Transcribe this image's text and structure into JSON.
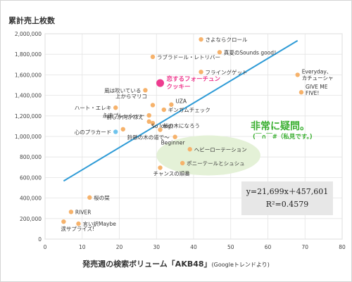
{
  "chart_data": {
    "type": "scatter",
    "ylabel": "累計売上枚数",
    "xlabel": "発売週の検索ボリューム「AKB48」",
    "xlabel_note": "(Googleトレンドより)",
    "xlim": [
      0,
      80
    ],
    "ylim": [
      0,
      2000000
    ],
    "x_ticks": [
      "0",
      "10",
      "20",
      "30",
      "40",
      "50",
      "60",
      "70",
      "80"
    ],
    "y_ticks": [
      "0",
      "200,000",
      "400,000",
      "600,000",
      "800,000",
      "1,000,000",
      "1,200,000",
      "1,400,000",
      "1,600,000",
      "1,800,000",
      "2,000,000"
    ],
    "grid": true,
    "colors": {
      "point": "#f6b26b",
      "highlight": "#ee3b8f",
      "special": "#6ec3ec",
      "trend": "#2e9bd6",
      "ellipse": "#e4f1d7",
      "note": "#3cb033"
    },
    "points": [
      {
        "label": "さよならクロール",
        "x": 42,
        "y": 1945000
      },
      {
        "label": "真夏のSounds good！",
        "x": 47,
        "y": 1820000
      },
      {
        "label": "ラブラドール・レトリバー",
        "x": 29,
        "y": 1775000
      },
      {
        "label": "フライングゲット",
        "x": 42,
        "y": 1628000
      },
      {
        "label": "Everyday、カチューシャ",
        "x": 68,
        "y": 1600000
      },
      {
        "label": "GIVE ME FIVE!",
        "x": 69,
        "y": 1430000
      },
      {
        "label": "風は吹いている",
        "x": 27,
        "y": 1450000
      },
      {
        "label": "上からマリコ",
        "x": 29,
        "y": 1305000
      },
      {
        "label": "UZA",
        "x": 34,
        "y": 1310000
      },
      {
        "label": "ハート・エレキ",
        "x": 19,
        "y": 1280000
      },
      {
        "label": "ギンガムチェック",
        "x": 32,
        "y": 1260000
      },
      {
        "label": "永遠プレッシャー",
        "x": 28,
        "y": 1205000
      },
      {
        "label": "前しか向かねえ",
        "x": 28,
        "y": 1145000
      },
      {
        "label": "So long！",
        "x": 29,
        "y": 1130000
      },
      {
        "label": "心のプラカード",
        "x": 19,
        "y": 1045000,
        "special": true
      },
      {
        "label": "鈴懸の木の道で〜",
        "x": 21,
        "y": 1070000
      },
      {
        "label": "桜の木になろう",
        "x": 31,
        "y": 1065000
      },
      {
        "label": "Beginner",
        "x": 35,
        "y": 995000
      },
      {
        "label": "ヘビーローテーション",
        "x": 39,
        "y": 875000
      },
      {
        "label": "ポニーテールとシュシュ",
        "x": 37,
        "y": 740000
      },
      {
        "label": "チャンスの順番",
        "x": 31,
        "y": 695000
      },
      {
        "label": "桜の栞",
        "x": 12,
        "y": 405000
      },
      {
        "label": "RIVER",
        "x": 7,
        "y": 265000
      },
      {
        "label": "言い訳Maybe",
        "x": 9,
        "y": 150000
      },
      {
        "label": "涙サプライズ!",
        "x": 5,
        "y": 170000
      }
    ],
    "highlight": {
      "label": "恋するフォーチュンクッキー",
      "lines": [
        "恋するフォーチュン",
        "クッキー"
      ],
      "x": 31,
      "y": 1520000
    },
    "regression": {
      "slope": 21699,
      "intercept": 457601,
      "x_range": [
        5,
        68
      ]
    },
    "annotation_ellipse_x": [
      30,
      58
    ],
    "annotation_ellipse_y": [
      620000,
      1010000
    ]
  },
  "equation": {
    "line1": "y=21,699x＋457,601",
    "line2": "R²=0.4579"
  },
  "note": {
    "title": "非常に疑問。",
    "subtitle": "(￣∩￣#（私見です。)"
  }
}
